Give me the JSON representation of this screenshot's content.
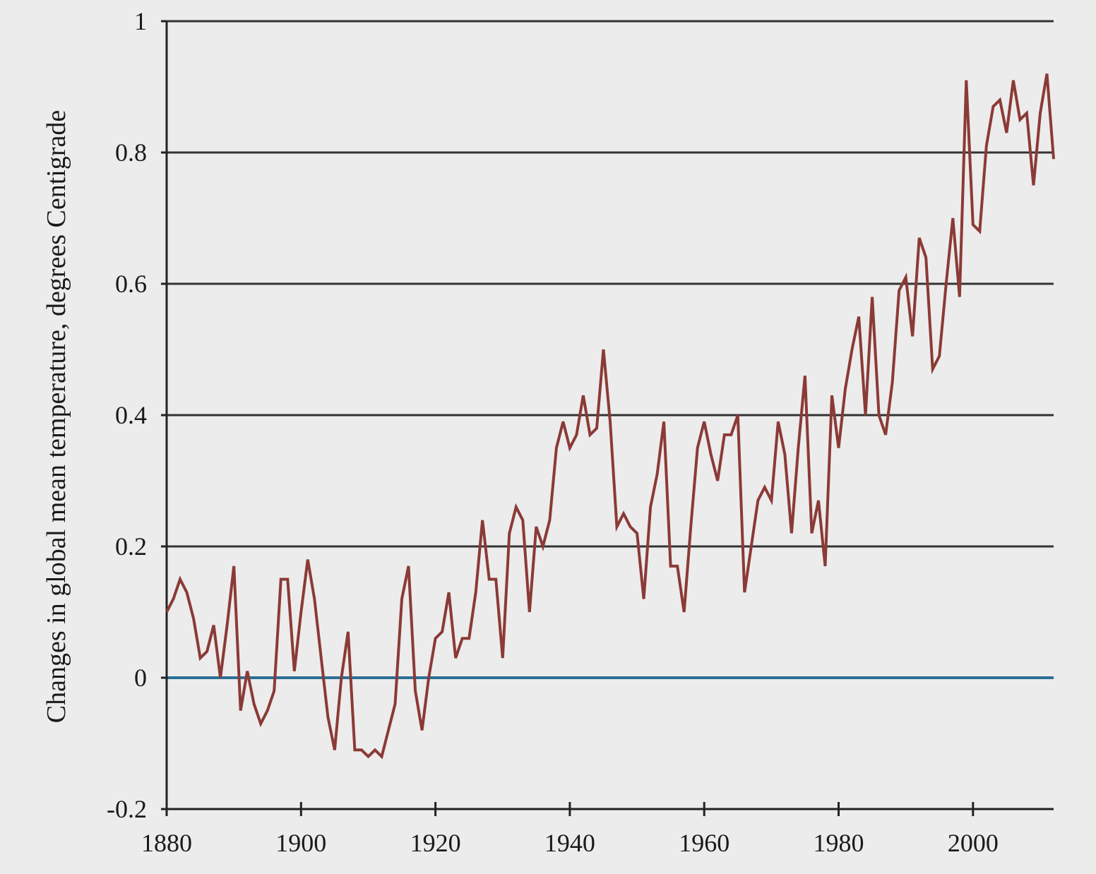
{
  "chart_data": {
    "type": "line",
    "title": "",
    "xlabel": "",
    "ylabel": "Changes in global mean temperature, degrees Centigrade",
    "xlim": [
      1880,
      2012
    ],
    "ylim": [
      -0.2,
      1
    ],
    "x_ticks": [
      "1880",
      "1900",
      "1920",
      "1940",
      "1960",
      "1980",
      "2000"
    ],
    "y_ticks": [
      "-0.2",
      "0",
      "0.2",
      "0.4",
      "0.6",
      "0.8",
      "1"
    ],
    "grid": "horizontal",
    "baseline": 0,
    "colors": {
      "series": "#8b3a36",
      "baseline": "#2b6f96",
      "grid": "#333333",
      "background": "#ececec"
    },
    "series": [
      {
        "x": [
          1880,
          1881,
          1882,
          1883,
          1884,
          1885,
          1886,
          1887,
          1888,
          1889,
          1890,
          1891,
          1892,
          1893,
          1894,
          1895,
          1896,
          1897,
          1898,
          1899,
          1900,
          1901,
          1902,
          1903,
          1904,
          1905,
          1906,
          1907,
          1908,
          1909,
          1910,
          1911,
          1912,
          1913,
          1914,
          1915,
          1916,
          1917,
          1918,
          1919,
          1920,
          1921,
          1922,
          1923,
          1924,
          1925,
          1926,
          1927,
          1928,
          1929,
          1930,
          1931,
          1932,
          1933,
          1934,
          1935,
          1936,
          1937,
          1938,
          1939,
          1940,
          1941,
          1942,
          1943,
          1944,
          1945,
          1946,
          1947,
          1948,
          1949,
          1950,
          1951,
          1952,
          1953,
          1954,
          1955,
          1956,
          1957,
          1958,
          1959,
          1960,
          1961,
          1962,
          1963,
          1964,
          1965,
          1966,
          1967,
          1968,
          1969,
          1970,
          1971,
          1972,
          1973,
          1974,
          1975,
          1976,
          1977,
          1978,
          1979,
          1980,
          1981,
          1982,
          1983,
          1984,
          1985,
          1986,
          1987,
          1988,
          1989,
          1990,
          1991,
          1992,
          1993,
          1994,
          1995,
          1996,
          1997,
          1998,
          1999,
          2000,
          2001,
          2002,
          2003,
          2004,
          2005,
          2006,
          2007,
          2008,
          2009,
          2010,
          2011,
          2012
        ],
        "values": [
          0.1,
          0.12,
          0.15,
          0.13,
          0.09,
          0.03,
          0.04,
          0.08,
          0.0,
          0.08,
          0.17,
          -0.05,
          0.01,
          -0.04,
          -0.07,
          -0.05,
          -0.02,
          0.15,
          0.15,
          0.01,
          0.1,
          0.18,
          0.12,
          0.03,
          -0.06,
          -0.11,
          0.0,
          0.07,
          -0.11,
          -0.11,
          -0.12,
          -0.11,
          -0.12,
          -0.08,
          -0.04,
          0.12,
          0.17,
          -0.02,
          -0.08,
          0.0,
          0.06,
          0.07,
          0.13,
          0.03,
          0.06,
          0.06,
          0.13,
          0.24,
          0.15,
          0.15,
          0.03,
          0.22,
          0.26,
          0.24,
          0.1,
          0.23,
          0.2,
          0.24,
          0.35,
          0.39,
          0.35,
          0.37,
          0.43,
          0.37,
          0.38,
          0.5,
          0.39,
          0.23,
          0.25,
          0.23,
          0.22,
          0.12,
          0.26,
          0.31,
          0.39,
          0.17,
          0.17,
          0.1,
          0.23,
          0.35,
          0.39,
          0.34,
          0.3,
          0.37,
          0.37,
          0.4,
          0.13,
          0.2,
          0.27,
          0.29,
          0.27,
          0.39,
          0.34,
          0.22,
          0.35,
          0.46,
          0.22,
          0.27,
          0.17,
          0.43,
          0.35,
          0.44,
          0.5,
          0.55,
          0.4,
          0.58,
          0.4,
          0.37,
          0.45,
          0.59,
          0.61,
          0.52,
          0.67,
          0.64,
          0.47,
          0.49,
          0.6,
          0.7,
          0.58,
          0.91,
          0.69,
          0.68,
          0.81,
          0.87,
          0.88,
          0.83,
          0.91,
          0.85,
          0.86,
          0.75,
          0.86,
          0.92,
          0.79
        ]
      }
    ]
  }
}
